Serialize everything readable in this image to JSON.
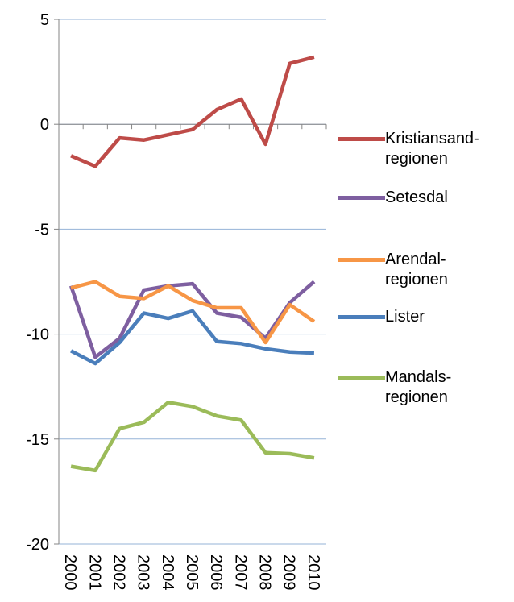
{
  "chart_data": {
    "type": "line",
    "categories": [
      "2000",
      "2001",
      "2002",
      "2003",
      "2004",
      "2005",
      "2006",
      "2007",
      "2008",
      "2009",
      "2010"
    ],
    "series": [
      {
        "name": "Kristiansand-regionen",
        "color": "#be4b48",
        "values": [
          -1.5,
          -2.0,
          -0.65,
          -0.75,
          -0.5,
          -0.25,
          0.7,
          1.2,
          -0.95,
          2.9,
          3.2
        ]
      },
      {
        "name": "Setesdal",
        "color": "#7e5fa0",
        "values": [
          -7.7,
          -11.1,
          -10.2,
          -7.9,
          -7.7,
          -7.6,
          -9.0,
          -9.2,
          -10.2,
          -8.5,
          -7.5
        ]
      },
      {
        "name": "Arendal-regionen",
        "color": "#f79646",
        "values": [
          -7.8,
          -7.5,
          -8.2,
          -8.3,
          -7.7,
          -8.4,
          -8.75,
          -8.75,
          -10.4,
          -8.6,
          -9.4
        ]
      },
      {
        "name": "Lister",
        "color": "#4a7ebb",
        "values": [
          -10.8,
          -11.4,
          -10.4,
          -9.0,
          -9.25,
          -8.9,
          -10.35,
          -10.45,
          -10.7,
          -10.85,
          -10.9
        ]
      },
      {
        "name": "Mandals-regionen",
        "color": "#9bbb59",
        "values": [
          -16.3,
          -16.5,
          -14.5,
          -14.2,
          -13.25,
          -13.45,
          -13.9,
          -14.1,
          -15.65,
          -15.7,
          -15.9
        ]
      }
    ],
    "ylim": [
      -20,
      5
    ],
    "yticks": [
      -20,
      -15,
      -10,
      -5,
      0,
      5
    ],
    "grid": true,
    "legend": "right"
  }
}
